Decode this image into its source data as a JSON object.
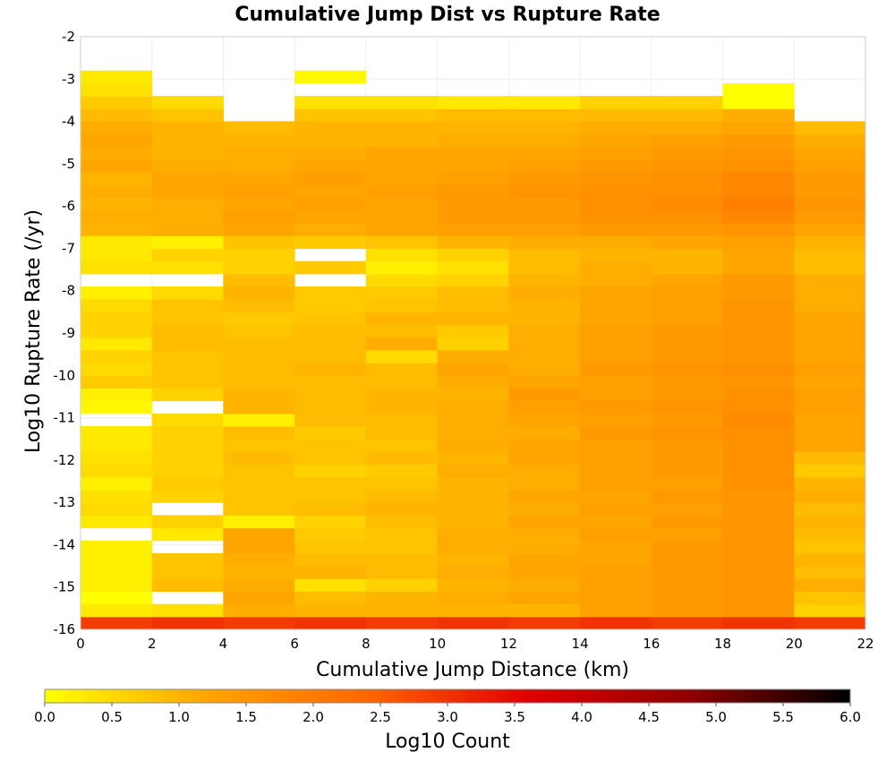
{
  "chart_data": {
    "type": "heatmap",
    "title": "Cumulative Jump Dist vs Rupture Rate",
    "xlabel": "Cumulative Jump Distance (km)",
    "ylabel": "Log10 Rupture Rate (/yr)",
    "colorbar_label": "Log10 Count",
    "xlim": [
      0,
      22
    ],
    "ylim": [
      -16,
      -2
    ],
    "x_ticks": [
      "0",
      "2",
      "4",
      "6",
      "8",
      "10",
      "12",
      "14",
      "16",
      "18",
      "20",
      "22"
    ],
    "y_ticks": [
      "-2",
      "-3",
      "-4",
      "-5",
      "-6",
      "-7",
      "-8",
      "-9",
      "-10",
      "-11",
      "-12",
      "-13",
      "-14",
      "-15",
      "-16"
    ],
    "colorbar_ticks": [
      "0.0",
      "0.5",
      "1.0",
      "1.5",
      "2.0",
      "2.5",
      "3.0",
      "3.5",
      "4.0",
      "4.5",
      "5.0",
      "5.5",
      "6.0"
    ],
    "color_range": [
      0,
      6
    ],
    "colormap": [
      "#ffff00",
      "#ffa500",
      "#ff6600",
      "#e00000",
      "#900000",
      "#000000"
    ],
    "grid": true,
    "legend": "colorbar-bottom",
    "x_bin_edges": [
      0,
      2,
      4,
      6,
      8,
      10,
      12,
      14,
      16,
      18,
      20,
      22
    ],
    "y_bin_edges": [
      -16,
      -15.7,
      -15.4,
      -15.1,
      -14.8,
      -14.5,
      -14.2,
      -13.9,
      -13.6,
      -13.3,
      -13,
      -12.7,
      -12.4,
      -12.1,
      -11.8,
      -11.5,
      -11.2,
      -10.9,
      -10.6,
      -10.3,
      -10,
      -9.7,
      -9.4,
      -9.1,
      -8.8,
      -8.5,
      -8.2,
      -7.9,
      -7.6,
      -7.3,
      -7,
      -6.7,
      -6.4,
      -6.1,
      -5.8,
      -5.5,
      -5.2,
      -4.9,
      -4.6,
      -4.3,
      -4,
      -3.7,
      -3.4,
      -3.1,
      -2.8
    ],
    "values": [
      [
        2.9,
        3.0,
        2.9,
        3.0,
        2.9,
        3.0,
        2.9,
        3.0,
        2.9,
        3.0,
        2.9
      ],
      [
        0.3,
        0.4,
        1.1,
        1.0,
        1.0,
        1.0,
        1.0,
        1.3,
        1.4,
        1.5,
        0.6
      ],
      [
        0.0,
        null,
        1.2,
        0.9,
        1.0,
        1.1,
        1.2,
        1.3,
        1.4,
        1.5,
        0.8
      ],
      [
        0.2,
        0.9,
        1.1,
        0.4,
        0.6,
        1.0,
        1.1,
        1.3,
        1.4,
        1.5,
        1.1
      ],
      [
        0.2,
        0.8,
        1.0,
        1.0,
        0.9,
        1.1,
        1.2,
        1.3,
        1.4,
        1.5,
        0.9
      ],
      [
        0.2,
        0.8,
        1.1,
        0.9,
        0.9,
        1.0,
        1.2,
        1.2,
        1.4,
        1.5,
        1.0
      ],
      [
        0.2,
        null,
        1.2,
        0.8,
        0.8,
        1.1,
        1.1,
        1.2,
        1.4,
        1.5,
        0.8
      ],
      [
        null,
        0.3,
        1.2,
        0.7,
        0.8,
        1.1,
        1.1,
        1.3,
        1.3,
        1.5,
        0.9
      ],
      [
        0.3,
        0.6,
        0.2,
        0.6,
        0.9,
        1.0,
        1.2,
        1.2,
        1.4,
        1.5,
        1.0
      ],
      [
        0.5,
        null,
        0.8,
        0.9,
        1.0,
        1.0,
        1.1,
        1.3,
        1.3,
        1.5,
        0.9
      ],
      [
        0.4,
        0.6,
        0.8,
        0.8,
        0.9,
        1.0,
        1.2,
        1.2,
        1.4,
        1.5,
        1.1
      ],
      [
        0.2,
        0.7,
        0.8,
        0.8,
        0.8,
        1.0,
        1.1,
        1.3,
        1.3,
        1.6,
        1.0
      ],
      [
        0.5,
        0.6,
        0.8,
        0.6,
        0.7,
        1.1,
        1.1,
        1.3,
        1.4,
        1.6,
        0.7
      ],
      [
        0.4,
        0.6,
        0.9,
        0.8,
        0.9,
        1.0,
        1.2,
        1.3,
        1.4,
        1.6,
        0.9
      ],
      [
        0.3,
        0.6,
        0.8,
        0.8,
        0.8,
        1.1,
        1.2,
        1.3,
        1.4,
        1.6,
        1.2
      ],
      [
        0.3,
        0.6,
        0.9,
        0.7,
        0.9,
        1.1,
        1.1,
        1.4,
        1.5,
        1.6,
        1.2
      ],
      [
        null,
        0.5,
        0.2,
        0.9,
        0.9,
        1.1,
        1.2,
        1.3,
        1.4,
        1.7,
        1.2
      ],
      [
        0.1,
        null,
        1.0,
        0.9,
        1.0,
        1.1,
        1.3,
        1.4,
        1.5,
        1.6,
        1.3
      ],
      [
        0.2,
        0.6,
        1.0,
        0.9,
        1.0,
        1.0,
        1.4,
        1.3,
        1.4,
        1.6,
        1.3
      ],
      [
        0.7,
        0.8,
        0.9,
        0.9,
        0.9,
        1.1,
        1.2,
        1.3,
        1.4,
        1.5,
        1.2
      ],
      [
        0.5,
        0.8,
        0.9,
        1.0,
        0.9,
        1.2,
        1.1,
        1.4,
        1.5,
        1.6,
        1.3
      ],
      [
        0.6,
        0.8,
        0.9,
        0.9,
        0.5,
        1.1,
        1.1,
        1.3,
        1.4,
        1.5,
        1.2
      ],
      [
        0.3,
        0.9,
        0.9,
        0.9,
        1.1,
        0.6,
        1.1,
        1.3,
        1.4,
        1.5,
        1.2
      ],
      [
        0.6,
        0.9,
        0.8,
        0.9,
        0.9,
        0.7,
        1.1,
        1.3,
        1.4,
        1.5,
        1.2
      ],
      [
        0.6,
        0.8,
        0.7,
        0.8,
        1.0,
        1.0,
        1.0,
        1.2,
        1.3,
        1.5,
        1.2
      ],
      [
        0.5,
        0.8,
        0.9,
        0.7,
        0.8,
        0.9,
        1.0,
        1.2,
        1.3,
        1.5,
        1.1
      ],
      [
        0.2,
        0.5,
        1.0,
        0.7,
        0.7,
        0.9,
        1.1,
        1.2,
        1.3,
        1.4,
        1.1
      ],
      [
        null,
        null,
        0.9,
        null,
        0.5,
        0.6,
        1.0,
        1.1,
        1.2,
        1.4,
        1.1
      ],
      [
        0.4,
        0.4,
        0.6,
        0.7,
        0.2,
        0.4,
        0.9,
        1.1,
        1.0,
        1.2,
        0.9
      ],
      [
        0.3,
        0.6,
        0.6,
        null,
        0.4,
        0.6,
        0.9,
        1.0,
        1.0,
        1.2,
        0.9
      ],
      [
        0.3,
        0.2,
        0.8,
        0.7,
        0.8,
        1.0,
        1.1,
        1.1,
        1.2,
        1.3,
        1.0
      ],
      [
        1.0,
        1.1,
        1.2,
        1.1,
        1.2,
        1.3,
        1.3,
        1.4,
        1.4,
        1.5,
        1.2
      ],
      [
        1.1,
        1.1,
        1.3,
        1.2,
        1.2,
        1.4,
        1.4,
        1.6,
        1.6,
        1.8,
        1.4
      ],
      [
        1.0,
        1.1,
        1.2,
        1.3,
        1.2,
        1.4,
        1.4,
        1.6,
        1.7,
        1.9,
        1.5
      ],
      [
        1.1,
        1.2,
        1.3,
        1.2,
        1.3,
        1.4,
        1.5,
        1.6,
        1.6,
        1.8,
        1.4
      ],
      [
        1.0,
        1.2,
        1.2,
        1.3,
        1.2,
        1.3,
        1.4,
        1.5,
        1.6,
        1.8,
        1.4
      ],
      [
        1.2,
        1.1,
        1.1,
        1.2,
        1.2,
        1.2,
        1.3,
        1.4,
        1.5,
        1.6,
        1.3
      ],
      [
        1.1,
        1.0,
        1.1,
        1.1,
        1.2,
        1.2,
        1.2,
        1.3,
        1.4,
        1.5,
        1.2
      ],
      [
        1.2,
        1.0,
        1.0,
        1.0,
        1.0,
        1.1,
        1.1,
        1.2,
        1.3,
        1.4,
        1.1
      ],
      [
        1.1,
        1.0,
        0.9,
        1.0,
        1.0,
        1.0,
        1.0,
        1.1,
        1.1,
        1.2,
        0.9
      ],
      [
        0.9,
        0.8,
        null,
        0.8,
        0.8,
        0.9,
        0.9,
        0.9,
        0.9,
        1.1,
        null
      ],
      [
        0.7,
        0.5,
        null,
        0.4,
        0.4,
        0.3,
        0.3,
        0.6,
        0.6,
        0.0,
        null
      ],
      [
        0.4,
        null,
        null,
        null,
        null,
        null,
        null,
        null,
        null,
        0.0,
        null
      ],
      [
        0.3,
        null,
        null,
        0.1,
        null,
        null,
        null,
        null,
        null,
        null,
        null
      ]
    ]
  }
}
